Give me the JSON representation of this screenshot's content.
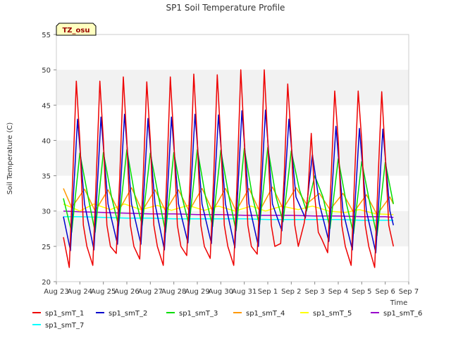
{
  "chart_data": {
    "type": "line",
    "title": "SP1 Soil Temperature Profile",
    "xlabel": "Time",
    "ylabel": "Soil Temperature (C)",
    "ylim": [
      20,
      55
    ],
    "yticks": [
      20,
      25,
      30,
      35,
      40,
      45,
      50,
      55
    ],
    "xlim": [
      0,
      15
    ],
    "xticks": [
      0,
      1,
      2,
      3,
      4,
      5,
      6,
      7,
      8,
      9,
      10,
      11,
      12,
      13,
      14,
      15
    ],
    "xtick_labels": [
      "Aug 23",
      "Aug 24",
      "Aug 25",
      "Aug 26",
      "Aug 27",
      "Aug 28",
      "Aug 29",
      "Aug 30",
      "Aug 31",
      "Sep 1",
      "Sep 2",
      "Sep 3",
      "Sep 4",
      "Sep 5",
      "Sep 6",
      "Sep 7"
    ],
    "x_units": "days since Aug 23",
    "grid": "alternating horizontal bands",
    "legend_position": "bottom",
    "annotation": "TZ_osu",
    "series": [
      {
        "name": "sp1_smT_1",
        "color": "#ee0000",
        "x": [
          0.3,
          0.55,
          0.7,
          0.85,
          1.0,
          1.15,
          1.3,
          1.55,
          1.7,
          1.85,
          2.0,
          2.15,
          2.3,
          2.55,
          2.7,
          2.85,
          3.0,
          3.15,
          3.3,
          3.55,
          3.7,
          3.85,
          4.0,
          4.15,
          4.3,
          4.55,
          4.7,
          4.85,
          5.0,
          5.15,
          5.3,
          5.55,
          5.7,
          5.85,
          6.0,
          6.15,
          6.3,
          6.55,
          6.7,
          6.85,
          7.0,
          7.15,
          7.3,
          7.55,
          7.7,
          7.85,
          8.0,
          8.15,
          8.3,
          8.55,
          8.7,
          8.85,
          9.0,
          9.15,
          9.3,
          9.55,
          9.7,
          9.85,
          10.0,
          10.15,
          10.3,
          10.55,
          10.7,
          10.85,
          11.0,
          11.15,
          11.3,
          11.55,
          11.7,
          11.85,
          12.0,
          12.15,
          12.3,
          12.55,
          12.7,
          12.85,
          13.0,
          13.15,
          13.3,
          13.55,
          13.7,
          13.85,
          14.0,
          14.15,
          14.35
        ],
        "y": [
          26.3,
          22.0,
          35.0,
          48.4,
          40.0,
          28.0,
          25.0,
          22.3,
          35.0,
          48.4,
          40.0,
          28.0,
          25.0,
          24.0,
          35.0,
          49.0,
          40.0,
          28.0,
          25.0,
          23.2,
          35.0,
          48.3,
          40.0,
          28.0,
          25.0,
          22.3,
          35.0,
          49.0,
          40.0,
          28.0,
          25.0,
          23.7,
          35.0,
          49.4,
          40.0,
          28.0,
          25.0,
          23.3,
          35.0,
          49.3,
          40.0,
          28.0,
          25.0,
          22.3,
          35.0,
          50.0,
          40.0,
          28.0,
          25.0,
          23.9,
          35.0,
          50.0,
          40.0,
          28.0,
          25.0,
          25.4,
          35.0,
          48.0,
          40.0,
          28.0,
          25.0,
          28.3,
          32.0,
          41.0,
          32.0,
          27.0,
          26.0,
          24.1,
          35.0,
          47.0,
          40.0,
          28.0,
          25.0,
          22.3,
          35.0,
          47.0,
          40.0,
          28.0,
          25.0,
          22.0,
          35.0,
          46.9,
          38.0,
          28.0,
          25.0
        ]
      },
      {
        "name": "sp1_smT_2",
        "color": "#0000cc",
        "x": [
          0.3,
          0.6,
          0.9,
          1.2,
          1.6,
          1.9,
          2.2,
          2.6,
          2.9,
          3.2,
          3.6,
          3.9,
          4.2,
          4.6,
          4.9,
          5.2,
          5.6,
          5.9,
          6.2,
          6.6,
          6.9,
          7.2,
          7.6,
          7.9,
          8.2,
          8.6,
          8.9,
          9.2,
          9.6,
          9.9,
          10.2,
          10.6,
          10.9,
          11.2,
          11.6,
          11.9,
          12.2,
          12.6,
          12.9,
          13.2,
          13.6,
          13.9,
          14.2,
          14.35
        ],
        "y": [
          29.2,
          24.4,
          43.0,
          31.0,
          24.5,
          43.3,
          31.0,
          25.3,
          43.7,
          31.0,
          25.3,
          43.1,
          31.0,
          24.5,
          43.3,
          31.0,
          25.5,
          43.7,
          31.0,
          25.4,
          43.6,
          31.0,
          24.8,
          44.2,
          31.0,
          25.0,
          44.3,
          31.0,
          27.2,
          43.0,
          32.0,
          29.0,
          38.0,
          31.0,
          25.7,
          42.0,
          30.0,
          24.5,
          41.7,
          30.0,
          24.1,
          41.6,
          30.0,
          28.0
        ]
      },
      {
        "name": "sp1_smT_3",
        "color": "#00dd00",
        "x": [
          0.3,
          0.65,
          1.0,
          1.35,
          1.65,
          2.0,
          2.35,
          2.65,
          3.0,
          3.35,
          3.65,
          4.0,
          4.35,
          4.65,
          5.0,
          5.35,
          5.65,
          6.0,
          6.35,
          6.65,
          7.0,
          7.35,
          7.65,
          8.0,
          8.35,
          8.65,
          9.0,
          9.35,
          9.65,
          10.0,
          10.35,
          10.65,
          11.0,
          11.35,
          11.65,
          12.0,
          12.35,
          12.65,
          13.0,
          13.35,
          13.65,
          14.0,
          14.35
        ],
        "y": [
          31.8,
          27.0,
          38.2,
          32.0,
          27.0,
          38.3,
          32.0,
          27.9,
          38.7,
          32.0,
          28.0,
          38.2,
          32.0,
          27.0,
          38.3,
          32.0,
          28.0,
          38.7,
          32.0,
          27.8,
          38.6,
          32.0,
          27.2,
          38.9,
          32.0,
          28.0,
          39.0,
          32.0,
          28.5,
          38.5,
          33.0,
          30.0,
          35.0,
          32.0,
          27.5,
          37.4,
          31.0,
          26.8,
          37.0,
          31.0,
          26.5,
          36.9,
          31.0
        ]
      },
      {
        "name": "sp1_smT_4",
        "color": "#ff9900",
        "x": [
          0.3,
          0.65,
          1.2,
          1.65,
          2.2,
          2.65,
          3.2,
          3.65,
          4.2,
          4.65,
          5.2,
          5.65,
          6.2,
          6.65,
          7.2,
          7.65,
          8.2,
          8.65,
          9.2,
          9.65,
          10.2,
          10.65,
          11.2,
          11.65,
          12.2,
          12.65,
          13.2,
          13.65,
          14.2,
          14.35
        ],
        "y": [
          33.2,
          30.5,
          33.1,
          30.0,
          33.0,
          30.0,
          33.3,
          30.0,
          33.0,
          30.0,
          33.0,
          30.0,
          33.2,
          30.0,
          33.2,
          30.0,
          33.2,
          30.0,
          33.4,
          30.3,
          33.3,
          31.0,
          32.5,
          30.2,
          32.5,
          29.8,
          32.3,
          29.5,
          32.0,
          31.0
        ]
      },
      {
        "name": "sp1_smT_5",
        "color": "#ffff00",
        "x": [
          0.3,
          1.0,
          1.6,
          2.3,
          2.9,
          3.6,
          4.3,
          4.9,
          5.6,
          6.3,
          6.9,
          7.6,
          8.3,
          8.9,
          9.6,
          10.3,
          10.9,
          11.6,
          12.3,
          12.9,
          13.6,
          14.35
        ],
        "y": [
          31.0,
          30.0,
          31.0,
          30.2,
          31.0,
          30.2,
          30.8,
          30.1,
          30.8,
          30.1,
          30.7,
          30.0,
          30.7,
          30.0,
          30.7,
          30.2,
          30.7,
          30.0,
          29.8,
          30.2,
          29.6,
          29.5
        ]
      },
      {
        "name": "sp1_smT_6",
        "color": "#9900cc",
        "x": [
          0.3,
          1.0,
          2.0,
          3.0,
          4.0,
          5.0,
          6.0,
          7.0,
          8.0,
          9.0,
          10.0,
          11.0,
          12.0,
          13.0,
          14.0,
          14.35
        ],
        "y": [
          30.0,
          29.9,
          29.8,
          29.7,
          29.6,
          29.6,
          29.5,
          29.5,
          29.4,
          29.4,
          29.4,
          29.3,
          29.3,
          29.2,
          29.2,
          29.1
        ]
      },
      {
        "name": "sp1_smT_7",
        "color": "#00ffff",
        "x": [
          0.3,
          1.0,
          2.0,
          3.0,
          4.0,
          5.0,
          6.0,
          7.0,
          8.0,
          9.0,
          10.0,
          11.0,
          12.0,
          13.0,
          14.0,
          14.35
        ],
        "y": [
          29.2,
          29.2,
          29.1,
          29.0,
          29.0,
          28.9,
          28.9,
          28.9,
          28.9,
          28.8,
          28.8,
          28.8,
          28.8,
          28.7,
          28.7,
          28.7
        ]
      }
    ]
  }
}
